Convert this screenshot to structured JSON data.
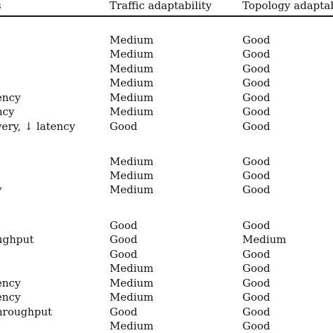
{
  "table": {
    "headers": [
      "s",
      "Traffic adaptability",
      "Topology adaptab"
    ],
    "rows": [
      {
        "first": "",
        "traffic": "Medium",
        "topology": "Good"
      },
      {
        "first": "",
        "traffic": "Medium",
        "topology": "Good"
      },
      {
        "first": "",
        "traffic": "Medium",
        "topology": "Good"
      },
      {
        "first": "",
        "traffic": "Medium",
        "topology": "Good"
      },
      {
        "first": "ency",
        "traffic": "Medium",
        "topology": "Good"
      },
      {
        "first": "ncy",
        "traffic": "Medium",
        "topology": "Good"
      },
      {
        "first": "very, ↓ latency",
        "traffic": "Good",
        "topology": "Good"
      },
      {
        "first": "",
        "traffic": "Medium",
        "topology": "Good"
      },
      {
        "first": "",
        "traffic": "Medium",
        "topology": "Good"
      },
      {
        "first": "y",
        "traffic": "Medium",
        "topology": "Good"
      },
      {
        "first": "",
        "traffic": "Good",
        "topology": "Good"
      },
      {
        "first": "ughput",
        "traffic": "Good",
        "topology": "Medium"
      },
      {
        "first": "",
        "traffic": "Good",
        "topology": "Good"
      },
      {
        "first": "",
        "traffic": "Medium",
        "topology": "Good"
      },
      {
        "first": "ency",
        "traffic": "Medium",
        "topology": "Good"
      },
      {
        "first": "ency",
        "traffic": "Medium",
        "topology": "Good"
      },
      {
        "first": "hroughput",
        "traffic": "Good",
        "topology": "Good"
      },
      {
        "first": "",
        "traffic": "Medium",
        "topology": "Good"
      }
    ]
  }
}
